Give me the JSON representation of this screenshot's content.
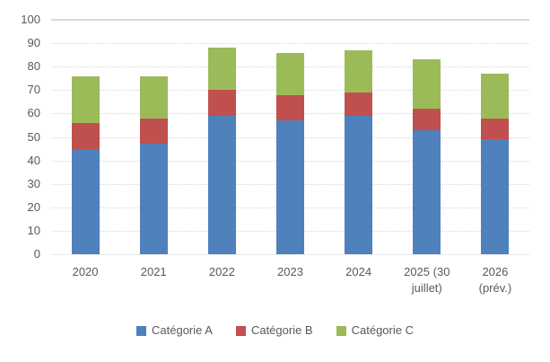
{
  "chart_data": {
    "type": "bar",
    "stacked": true,
    "title": "",
    "xlabel": "",
    "ylabel": "",
    "categories": [
      "2020",
      "2021",
      "2022",
      "2023",
      "2024",
      "2025 (30 juillet)",
      "2026 (prév.)"
    ],
    "series": [
      {
        "name": "Catégorie A",
        "color": "#4F81BD",
        "values": [
          45,
          47,
          59,
          57,
          59,
          53,
          49
        ]
      },
      {
        "name": "Catégorie B",
        "color": "#C0504D",
        "values": [
          11,
          11,
          11,
          11,
          10,
          9,
          9
        ]
      },
      {
        "name": "Catégorie C",
        "color": "#9BBB59",
        "values": [
          20,
          18,
          18,
          18,
          18,
          21,
          19
        ]
      }
    ],
    "totals": [
      76,
      76,
      88,
      86,
      87,
      83,
      77
    ],
    "ylim": [
      0,
      100
    ],
    "yticks": [
      0,
      10,
      20,
      30,
      40,
      50,
      60,
      70,
      80,
      90,
      100
    ],
    "grid": true,
    "gridline_color": "#D9D9D9",
    "axis_text_color": "#595959",
    "legend_position": "bottom",
    "legend_entries": [
      "Catégorie A",
      "Catégorie B",
      "Catégorie C"
    ]
  }
}
